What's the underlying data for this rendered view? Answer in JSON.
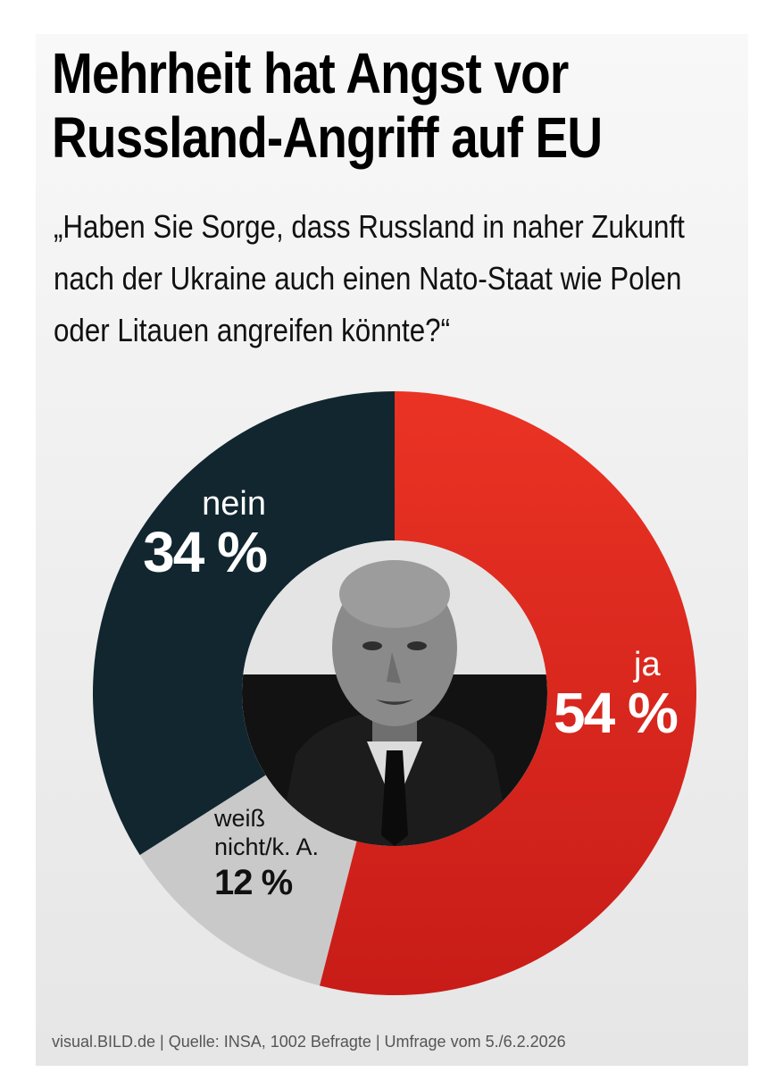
{
  "headline": {
    "line1": "Mehrheit hat Angst vor",
    "line2": "Russland-Angriff auf EU"
  },
  "question": {
    "line1": "„Haben Sie Sorge, dass Russland in naher Zukunft",
    "line2": "nach der Ukraine auch einen Nato-Staat wie Polen",
    "line3": "oder Litauen angreifen könnte?“"
  },
  "chart_data": {
    "type": "pie",
    "title": "Mehrheit hat Angst vor Russland-Angriff auf EU",
    "unit": "%",
    "slices": [
      {
        "name": "ja",
        "value": 54,
        "label": "54 %",
        "color": "#e3261c"
      },
      {
        "name": "weiß nicht/k. A.",
        "value": 12,
        "label": "12 %",
        "color": "#c9c9c9"
      },
      {
        "name": "nein",
        "value": 34,
        "label": "34 %",
        "color": "#11262f"
      }
    ]
  },
  "labels": {
    "ja_name": "ja",
    "ja_pct": "54 %",
    "nein_name": "nein",
    "nein_pct": "34 %",
    "weiss_name_1": "weiß",
    "weiss_name_2": "nicht/k. A.",
    "weiss_pct": "12 %"
  },
  "footer": "visual.BILD.de | Quelle: INSA, 1002 Befragte | Umfrage vom 5./6.2.2026"
}
